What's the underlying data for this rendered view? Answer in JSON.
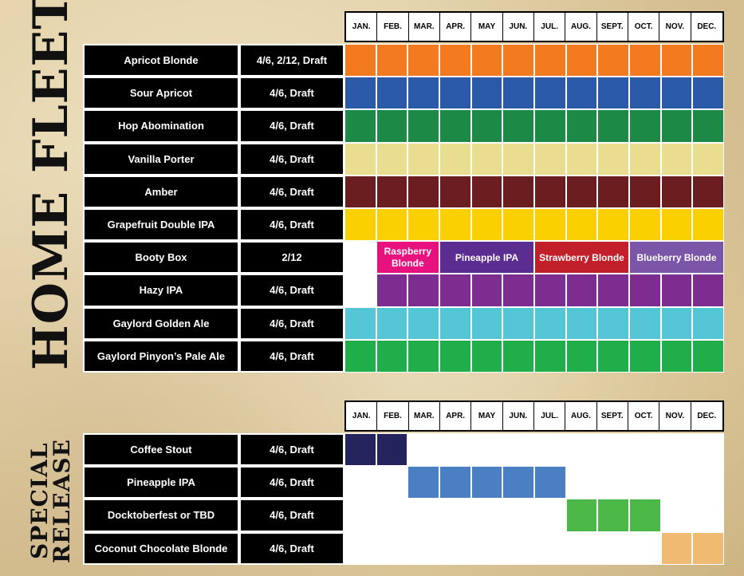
{
  "home_title": "HOME FLEET",
  "special_title_line1": "SPECIAL",
  "special_title_line2": "RELEASE",
  "months_home": [
    "JAN.",
    "FEB.",
    "MAR.",
    "APR.",
    "MAY",
    "JUN.",
    "JUL.",
    "AUG.",
    "SEPT.",
    "OCT.",
    "NOV.",
    "DEC."
  ],
  "months_special": [
    "JAN.",
    "FEB.",
    "MAR.",
    "APR.",
    "MAY",
    "JUN.",
    "JUL.",
    "AUG.",
    "SEPT.",
    "OCT.",
    "NOV.",
    "DEC."
  ],
  "home_fleet": [
    {
      "name": "Apricot Blonde",
      "pack": "4/6, 2/12, Draft",
      "color": "#f47a20",
      "start": 1,
      "end": 12
    },
    {
      "name": "Sour Apricot",
      "pack": "4/6, Draft",
      "color": "#2b5ba8",
      "start": 1,
      "end": 12
    },
    {
      "name": "Hop Abomination",
      "pack": "4/6, Draft",
      "color": "#1c8a46",
      "start": 1,
      "end": 12
    },
    {
      "name": "Vanilla Porter",
      "pack": "4/6, Draft",
      "color": "#e9dd8f",
      "start": 1,
      "end": 12
    },
    {
      "name": "Amber",
      "pack": "4/6, Draft",
      "color": "#6b1d1f",
      "start": 1,
      "end": 12
    },
    {
      "name": "Grapefruit Double IPA",
      "pack": "4/6, Draft",
      "color": "#fbd000",
      "start": 1,
      "end": 12
    },
    {
      "name": "Booty Box",
      "pack": "2/12",
      "color": "",
      "start": 0,
      "end": 0
    },
    {
      "name": "Hazy IPA",
      "pack": "4/6, Draft",
      "color": "#7d2c8f",
      "start": 2,
      "end": 12
    },
    {
      "name": "Gaylord Golden Ale",
      "pack": "4/6, Draft",
      "color": "#54c6d6",
      "start": 1,
      "end": 12
    },
    {
      "name": "Gaylord Pinyon’s Pale Ale",
      "pack": "4/6, Draft",
      "color": "#1fae4a",
      "start": 1,
      "end": 12
    }
  ],
  "booty_box_spans": [
    {
      "label": "Raspberry Blonde",
      "color": "#e8127f",
      "start": 2,
      "end": 3
    },
    {
      "label": "Pineapple IPA",
      "color": "#5b2d91",
      "start": 4,
      "end": 6
    },
    {
      "label": "Strawberry Blonde",
      "color": "#c11f2a",
      "start": 7,
      "end": 9
    },
    {
      "label": "Blueberry Blonde",
      "color": "#7a55a8",
      "start": 10,
      "end": 12
    }
  ],
  "special_release": [
    {
      "name": "Coffee Stout",
      "pack": "4/6, Draft",
      "color": "#23235e",
      "start": 1,
      "end": 2
    },
    {
      "name": "Pineapple IPA",
      "pack": "4/6, Draft",
      "color": "#4a7fc4",
      "start": 3,
      "end": 7
    },
    {
      "name": "Docktoberfest or TBD",
      "pack": "4/6, Draft",
      "color": "#4cb848",
      "start": 8,
      "end": 10
    },
    {
      "name": "Coconut Chocolate Blonde",
      "pack": "4/6, Draft",
      "color": "#efbb72",
      "start": 11,
      "end": 12
    }
  ]
}
